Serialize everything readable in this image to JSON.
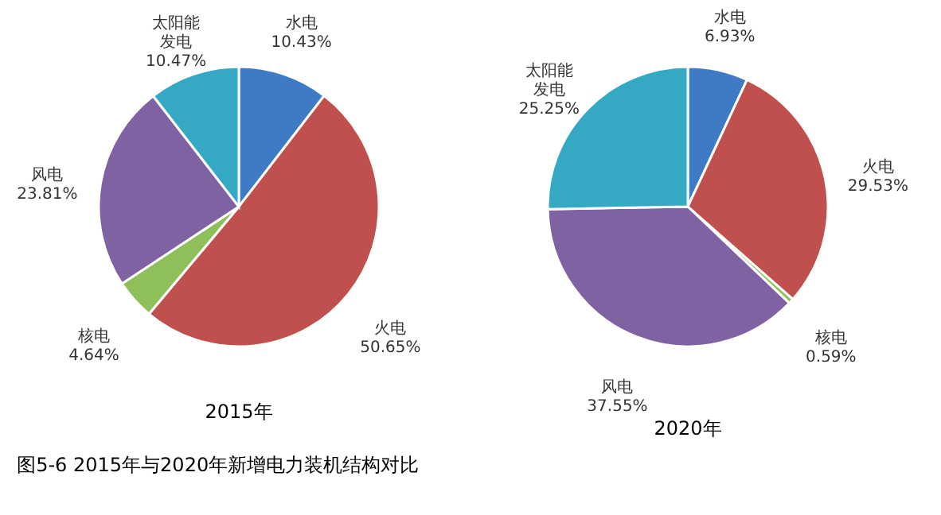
{
  "chart_data": [
    {
      "type": "pie",
      "title": "2015年",
      "categories": [
        "水电",
        "火电",
        "核电",
        "风电",
        "太阳能发电"
      ],
      "values": [
        10.43,
        50.65,
        4.64,
        23.81,
        10.47
      ],
      "value_labels": [
        "10.43%",
        "50.65%",
        "4.64%",
        "23.81%",
        "10.47%"
      ],
      "colors": [
        "#3f7bc4",
        "#c0504d",
        "#8fbf5a",
        "#7f62a1",
        "#35a9c4"
      ],
      "legend": false,
      "annotations": [
        "图5-6 2015年与2020年新增电力装机结构对比"
      ]
    },
    {
      "type": "pie",
      "title": "2020年",
      "categories": [
        "水电",
        "火电",
        "核电",
        "风电",
        "太阳能发电"
      ],
      "values": [
        6.93,
        29.53,
        0.59,
        37.55,
        25.25
      ],
      "value_labels": [
        "6.93%",
        "29.53%",
        "0.59%",
        "37.55%",
        "25.25%"
      ],
      "colors": [
        "#3f7bc4",
        "#c0504d",
        "#8fbf5a",
        "#7f62a1",
        "#35a9c4"
      ],
      "legend": false
    }
  ]
}
